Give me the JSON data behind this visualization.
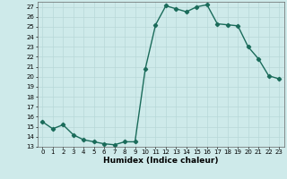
{
  "x": [
    0,
    1,
    2,
    3,
    4,
    5,
    6,
    7,
    8,
    9,
    10,
    11,
    12,
    13,
    14,
    15,
    16,
    17,
    18,
    19,
    20,
    21,
    22,
    23
  ],
  "y": [
    15.5,
    14.8,
    15.2,
    14.2,
    13.7,
    13.5,
    13.3,
    13.2,
    13.5,
    13.5,
    20.8,
    25.2,
    27.1,
    26.8,
    26.5,
    27.0,
    27.2,
    25.3,
    25.2,
    25.1,
    23.0,
    21.8,
    20.1,
    19.8
  ],
  "line_color": "#1a6b5a",
  "marker": "D",
  "markersize": 2.2,
  "linewidth": 1.0,
  "xlabel": "Humidex (Indice chaleur)",
  "xlim": [
    -0.5,
    23.5
  ],
  "ylim": [
    13,
    27.5
  ],
  "yticks": [
    13,
    14,
    15,
    16,
    17,
    18,
    19,
    20,
    21,
    22,
    23,
    24,
    25,
    26,
    27
  ],
  "xticks": [
    0,
    1,
    2,
    3,
    4,
    5,
    6,
    7,
    8,
    9,
    10,
    11,
    12,
    13,
    14,
    15,
    16,
    17,
    18,
    19,
    20,
    21,
    22,
    23
  ],
  "bg_color": "#ceeaea",
  "grid_color": "#b8d8d8",
  "tick_label_fontsize": 5.0,
  "xlabel_fontsize": 6.5
}
